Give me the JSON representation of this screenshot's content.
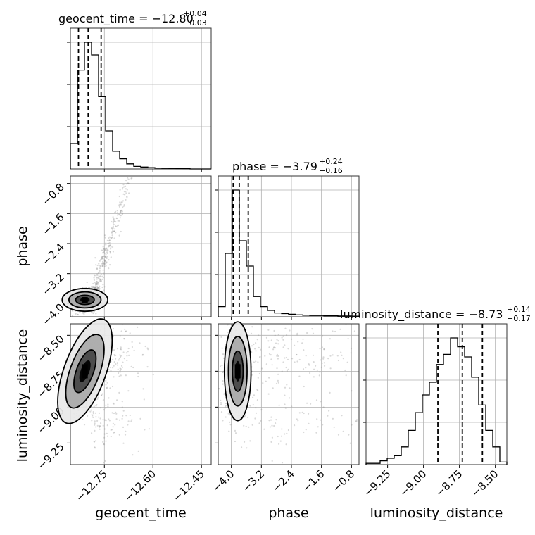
{
  "chart_data": {
    "type": "corner",
    "parameters": [
      "geocent_time",
      "phase",
      "luminosity_distance"
    ],
    "titles": [
      {
        "param": "geocent_time",
        "prefix": "geocent_time = ",
        "median": "−12.80",
        "plus": "+0.04",
        "minus": "−0.03"
      },
      {
        "param": "phase",
        "prefix": "phase = ",
        "median": "−3.79",
        "plus": "+0.24",
        "minus": "−0.16"
      },
      {
        "param": "luminosity_distance",
        "prefix": "luminosity_distance = ",
        "median": "−8.73",
        "plus": "+0.14",
        "minus": "−0.17"
      }
    ],
    "axes": {
      "geocent_time": {
        "range": [
          -12.855,
          -12.42
        ],
        "ticks": [
          -12.75,
          -12.6,
          -12.45
        ],
        "tick_labels": [
          "−12.75",
          "−12.60",
          "−12.45"
        ]
      },
      "phase": {
        "range": [
          -4.35,
          -0.6
        ],
        "ticks": [
          -4.0,
          -3.2,
          -2.4,
          -1.6,
          -0.8
        ],
        "tick_labels": [
          "−4.0",
          "−3.2",
          "−2.4",
          "−1.6",
          "−0.8"
        ]
      },
      "luminosity_distance": {
        "range": [
          -9.4,
          -8.42
        ],
        "ticks": [
          -9.25,
          -9.0,
          -8.75,
          -8.5
        ],
        "tick_labels": [
          "−9.25",
          "−9.00",
          "−8.75",
          "−8.50"
        ]
      }
    },
    "histograms": [
      {
        "param": "geocent_time",
        "counts": [
          0.2,
          0.78,
          1.0,
          0.9,
          0.57,
          0.3,
          0.14,
          0.08,
          0.04,
          0.02,
          0.015,
          0.01,
          0.007,
          0.006,
          0.004,
          0.003,
          0.002,
          0.0,
          0.0,
          0.0
        ],
        "quantiles": [
          -12.83,
          -12.8,
          -12.76
        ]
      },
      {
        "param": "phase",
        "counts": [
          0.08,
          0.5,
          1.0,
          0.6,
          0.4,
          0.16,
          0.08,
          0.05,
          0.03,
          0.025,
          0.02,
          0.015,
          0.012,
          0.01,
          0.01,
          0.008,
          0.008,
          0.006,
          0.006,
          0.005
        ],
        "quantiles": [
          -3.95,
          -3.79,
          -3.55
        ]
      },
      {
        "param": "luminosity_distance",
        "counts": [
          0.01,
          0.01,
          0.03,
          0.05,
          0.07,
          0.14,
          0.27,
          0.41,
          0.55,
          0.65,
          0.79,
          0.87,
          1.0,
          0.93,
          0.85,
          0.69,
          0.47,
          0.27,
          0.14,
          0.02
        ],
        "quantiles": [
          -8.9,
          -8.73,
          -8.59
        ]
      }
    ],
    "pairs": [
      {
        "x": "geocent_time",
        "y": "phase"
      },
      {
        "x": "geocent_time",
        "y": "luminosity_distance"
      },
      {
        "x": "phase",
        "y": "luminosity_distance"
      }
    ],
    "grid": true
  }
}
